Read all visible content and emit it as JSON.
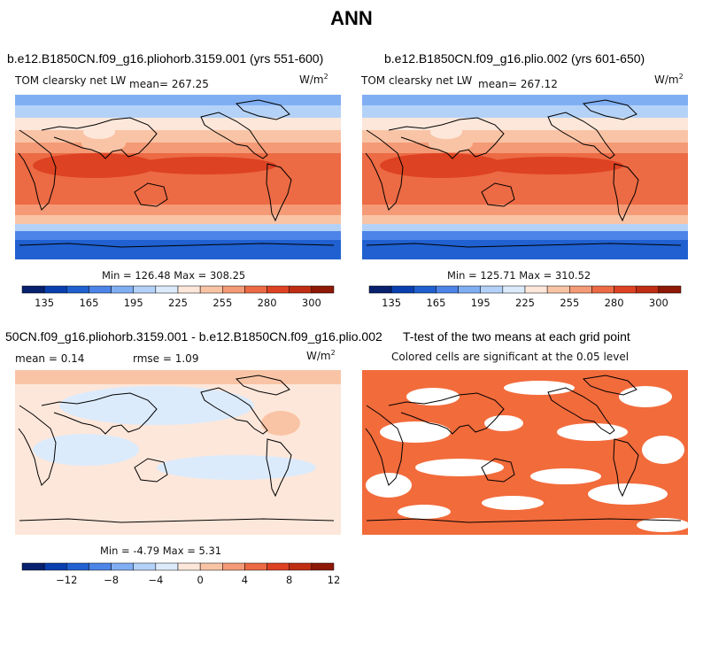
{
  "page_title": "ANN",
  "colors": {
    "palette_blue_red": [
      "#08206e",
      "#0a3fb0",
      "#2060d0",
      "#4c84e8",
      "#80aef2",
      "#b4d2f8",
      "#dcebfc",
      "#fde7da",
      "#f9c4a6",
      "#f49a76",
      "#ec6a44",
      "#dd4222",
      "#bf2d12",
      "#8e1906"
    ],
    "significance": "#f26b3b"
  },
  "panels": [
    {
      "title": "b.e12.B1850CN.f09_g16.pliohorb.3159.001 (yrs 551-600)",
      "variable": "TOM clearsky net LW",
      "mean_label": "mean= 267.25",
      "units": "W/m",
      "units_exp": "2",
      "stats": "Min = 126.48 Max = 308.25"
    },
    {
      "title": "b.e12.B1850CN.f09_g16.plio.002 (yrs 601-650)",
      "variable": "TOM clearsky net LW",
      "mean_label": "mean= 267.12",
      "units": "W/m",
      "units_exp": "2",
      "stats": "Min = 125.71 Max = 310.52"
    },
    {
      "title": "50CN.f09_g16.pliohorb.3159.001 - b.e12.B1850CN.f09_g16.plio.002",
      "mean_label": "mean =   0.14",
      "rmse_label": "rmse =   1.09",
      "units": "W/m",
      "units_exp": "2",
      "stats": "Min =  -4.79 Max =   5.31"
    },
    {
      "title": "T-test of the two means at each grid point",
      "subtitle": "Colored cells are significant at the 0.05 level"
    }
  ],
  "chart_data": [
    {
      "type": "heatmap",
      "title": "b.e12.B1850CN.f09_g16.pliohorb.3159.001 (yrs 551-600)",
      "subtitle": "TOM clearsky net LW",
      "units": "W/m^2",
      "mean": 267.25,
      "min": 126.48,
      "max": 308.25,
      "colorbar_ticks": [
        135,
        165,
        195,
        225,
        255,
        280,
        300
      ],
      "colorbar_levels": [
        120,
        135,
        150,
        165,
        180,
        195,
        210,
        225,
        240,
        255,
        270,
        280,
        290,
        300,
        310
      ]
    },
    {
      "type": "heatmap",
      "title": "b.e12.B1850CN.f09_g16.plio.002 (yrs 601-650)",
      "subtitle": "TOM clearsky net LW",
      "units": "W/m^2",
      "mean": 267.12,
      "min": 125.71,
      "max": 310.52,
      "colorbar_ticks": [
        135,
        165,
        195,
        225,
        255,
        280,
        300
      ],
      "colorbar_levels": [
        120,
        135,
        150,
        165,
        180,
        195,
        210,
        225,
        240,
        255,
        270,
        280,
        290,
        300,
        310
      ]
    },
    {
      "type": "heatmap",
      "title": "50CN.f09_g16.pliohorb.3159.001 - b.e12.B1850CN.f09_g16.plio.002",
      "units": "W/m^2",
      "mean": 0.14,
      "rmse": 1.09,
      "min": -4.79,
      "max": 5.31,
      "colorbar_ticks": [
        -12,
        -8,
        -4,
        0,
        4,
        8,
        12
      ],
      "colorbar_levels": [
        -16,
        -14,
        -12,
        -10,
        -8,
        -6,
        -4,
        -2,
        0,
        2,
        4,
        6,
        8,
        10,
        12
      ]
    },
    {
      "type": "heatmap",
      "title": "T-test of the two means at each grid point",
      "subtitle": "Colored cells are significant at the 0.05 level",
      "significance_level": 0.05
    }
  ]
}
